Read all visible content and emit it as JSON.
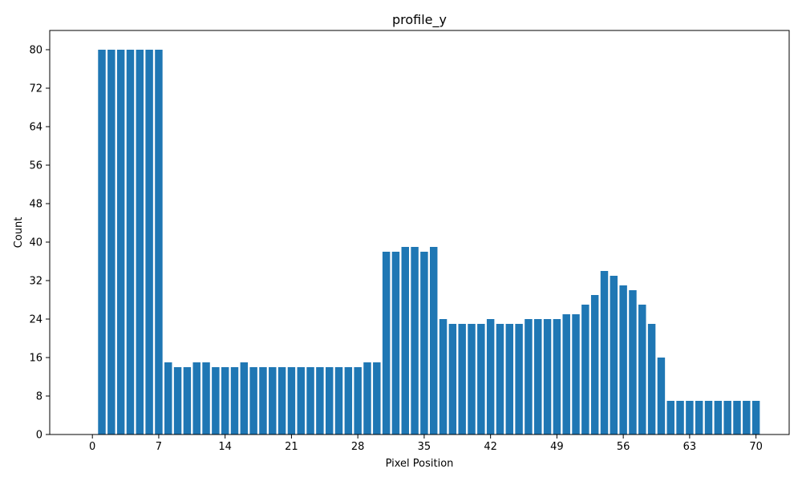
{
  "chart_data": {
    "type": "bar",
    "title": "profile_y",
    "xlabel": "Pixel Position",
    "ylabel": "Count",
    "bar_color": "#1f77b4",
    "xlim": [
      -4.5,
      73.5
    ],
    "ylim": [
      0,
      84
    ],
    "xticks": [
      0,
      7,
      14,
      21,
      28,
      35,
      42,
      49,
      56,
      63,
      70
    ],
    "yticks": [
      0,
      8,
      16,
      24,
      32,
      40,
      48,
      56,
      64,
      72,
      80
    ],
    "grid": false,
    "x": [
      1,
      2,
      3,
      4,
      5,
      6,
      7,
      8,
      9,
      10,
      11,
      12,
      13,
      14,
      15,
      16,
      17,
      18,
      19,
      20,
      21,
      22,
      23,
      24,
      25,
      26,
      27,
      28,
      29,
      30,
      31,
      32,
      33,
      34,
      35,
      36,
      37,
      38,
      39,
      40,
      41,
      42,
      43,
      44,
      45,
      46,
      47,
      48,
      49,
      50,
      51,
      52,
      53,
      54,
      55,
      56,
      57,
      58,
      59,
      60,
      61,
      62,
      63,
      64,
      65,
      66,
      67,
      68,
      69,
      70
    ],
    "values": [
      80,
      80,
      80,
      80,
      80,
      80,
      80,
      15,
      14,
      14,
      15,
      15,
      14,
      14,
      14,
      15,
      14,
      14,
      14,
      14,
      14,
      14,
      14,
      14,
      14,
      14,
      14,
      14,
      15,
      15,
      38,
      38,
      39,
      39,
      38,
      39,
      24,
      23,
      23,
      23,
      23,
      24,
      23,
      23,
      23,
      24,
      24,
      24,
      24,
      25,
      25,
      27,
      29,
      34,
      33,
      31,
      30,
      27,
      23,
      16,
      7,
      7,
      7,
      7,
      7,
      7,
      7,
      7,
      7,
      7
    ]
  }
}
